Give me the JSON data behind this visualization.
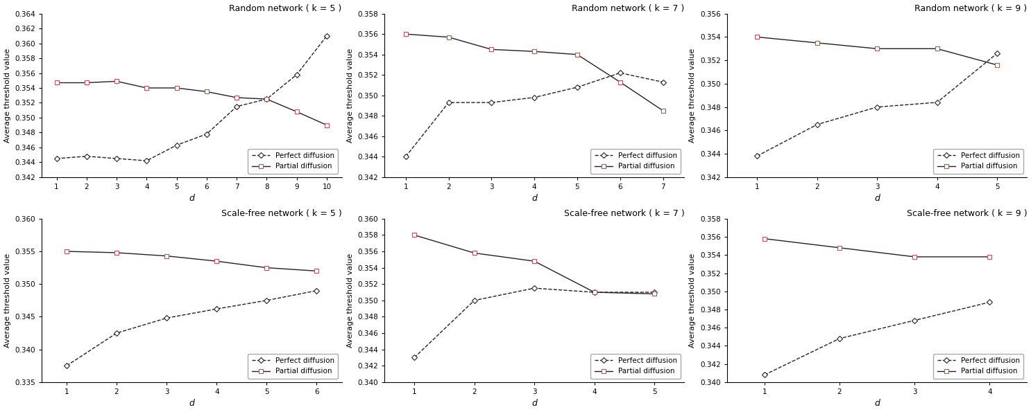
{
  "subplots": [
    {
      "title": "Random network ( k = 5 )",
      "xlabel": "d",
      "ylabel": "Average threshold value",
      "xlim": [
        0.5,
        10.5
      ],
      "ylim": [
        0.342,
        0.364
      ],
      "yticks": [
        0.342,
        0.344,
        0.346,
        0.348,
        0.35,
        0.352,
        0.354,
        0.356,
        0.358,
        0.36,
        0.362,
        0.364
      ],
      "xticks": [
        1,
        2,
        3,
        4,
        5,
        6,
        7,
        8,
        9,
        10
      ],
      "perfect": {
        "x": [
          1,
          2,
          3,
          4,
          5,
          6,
          7,
          8,
          9,
          10
        ],
        "y": [
          0.3445,
          0.3448,
          0.3445,
          0.3442,
          0.3463,
          0.3478,
          0.3515,
          0.3525,
          0.3558,
          0.361
        ]
      },
      "partial": {
        "x": [
          1,
          2,
          3,
          4,
          5,
          6,
          7,
          8,
          9,
          10
        ],
        "y": [
          0.3547,
          0.3547,
          0.3549,
          0.354,
          0.354,
          0.3535,
          0.3527,
          0.3525,
          0.3508,
          0.349
        ]
      }
    },
    {
      "title": "Random network ( k = 7 )",
      "xlabel": "d",
      "ylabel": "Average threshold value",
      "xlim": [
        0.5,
        7.5
      ],
      "ylim": [
        0.342,
        0.358
      ],
      "yticks": [
        0.342,
        0.344,
        0.346,
        0.348,
        0.35,
        0.352,
        0.354,
        0.356,
        0.358
      ],
      "xticks": [
        1,
        2,
        3,
        4,
        5,
        6,
        7
      ],
      "perfect": {
        "x": [
          1,
          2,
          3,
          4,
          5,
          6,
          7
        ],
        "y": [
          0.344,
          0.3493,
          0.3493,
          0.3498,
          0.3508,
          0.3522,
          0.3513
        ]
      },
      "partial": {
        "x": [
          1,
          2,
          3,
          4,
          5,
          6,
          7
        ],
        "y": [
          0.356,
          0.3557,
          0.3545,
          0.3543,
          0.354,
          0.3513,
          0.3485
        ]
      }
    },
    {
      "title": "Random network ( k = 9 )",
      "xlabel": "d",
      "ylabel": "Average threshold value",
      "xlim": [
        0.5,
        5.5
      ],
      "ylim": [
        0.342,
        0.356
      ],
      "yticks": [
        0.342,
        0.344,
        0.346,
        0.348,
        0.35,
        0.352,
        0.354,
        0.356
      ],
      "xticks": [
        1,
        2,
        3,
        4,
        5
      ],
      "perfect": {
        "x": [
          1,
          2,
          3,
          4,
          5
        ],
        "y": [
          0.3438,
          0.3465,
          0.348,
          0.3484,
          0.3526
        ]
      },
      "partial": {
        "x": [
          1,
          2,
          3,
          4,
          5
        ],
        "y": [
          0.354,
          0.3535,
          0.353,
          0.353,
          0.3516
        ]
      }
    },
    {
      "title": "Scale-free network ( k = 5 )",
      "xlabel": "d",
      "ylabel": "Average threshold value",
      "xlim": [
        0.5,
        6.5
      ],
      "ylim": [
        0.335,
        0.36
      ],
      "yticks": [
        0.335,
        0.34,
        0.345,
        0.35,
        0.355,
        0.36
      ],
      "xticks": [
        1,
        2,
        3,
        4,
        5,
        6
      ],
      "perfect": {
        "x": [
          1,
          2,
          3,
          4,
          5,
          6
        ],
        "y": [
          0.3375,
          0.3425,
          0.3448,
          0.3462,
          0.3475,
          0.349
        ]
      },
      "partial": {
        "x": [
          1,
          2,
          3,
          4,
          5,
          6
        ],
        "y": [
          0.355,
          0.3548,
          0.3543,
          0.3535,
          0.3525,
          0.352
        ]
      }
    },
    {
      "title": "Scale-free network ( k = 7 )",
      "xlabel": "d",
      "ylabel": "Average threshold value",
      "xlim": [
        0.5,
        5.5
      ],
      "ylim": [
        0.34,
        0.36
      ],
      "yticks": [
        0.34,
        0.342,
        0.344,
        0.346,
        0.348,
        0.35,
        0.352,
        0.354,
        0.356,
        0.358,
        0.36
      ],
      "xticks": [
        1,
        2,
        3,
        4,
        5
      ],
      "perfect": {
        "x": [
          1,
          2,
          3,
          4,
          5
        ],
        "y": [
          0.343,
          0.35,
          0.3515,
          0.351,
          0.351
        ]
      },
      "partial": {
        "x": [
          1,
          2,
          3,
          4,
          5
        ],
        "y": [
          0.358,
          0.3558,
          0.3548,
          0.351,
          0.3508
        ]
      }
    },
    {
      "title": "Scale-free network ( k = 9 )",
      "xlabel": "d",
      "ylabel": "Average threshold value",
      "xlim": [
        0.5,
        4.5
      ],
      "ylim": [
        0.34,
        0.358
      ],
      "yticks": [
        0.34,
        0.342,
        0.344,
        0.346,
        0.348,
        0.35,
        0.352,
        0.354,
        0.356,
        0.358
      ],
      "xticks": [
        1,
        2,
        3,
        4
      ],
      "perfect": {
        "x": [
          1,
          2,
          3,
          4
        ],
        "y": [
          0.3408,
          0.3448,
          0.3468,
          0.3488
        ]
      },
      "partial": {
        "x": [
          1,
          2,
          3,
          4
        ],
        "y": [
          0.3558,
          0.3548,
          0.3538,
          0.3538
        ]
      }
    }
  ],
  "line_color": "#231f20",
  "partial_marker_color": "#c0504d",
  "perfect_linestyle": "--",
  "partial_linestyle": "-",
  "marker_perfect": "D",
  "marker_partial": "s",
  "markersize": 4,
  "legend_labels": [
    "Perfect diffusion",
    "Partial diffusion"
  ],
  "background_color": "#ffffff"
}
